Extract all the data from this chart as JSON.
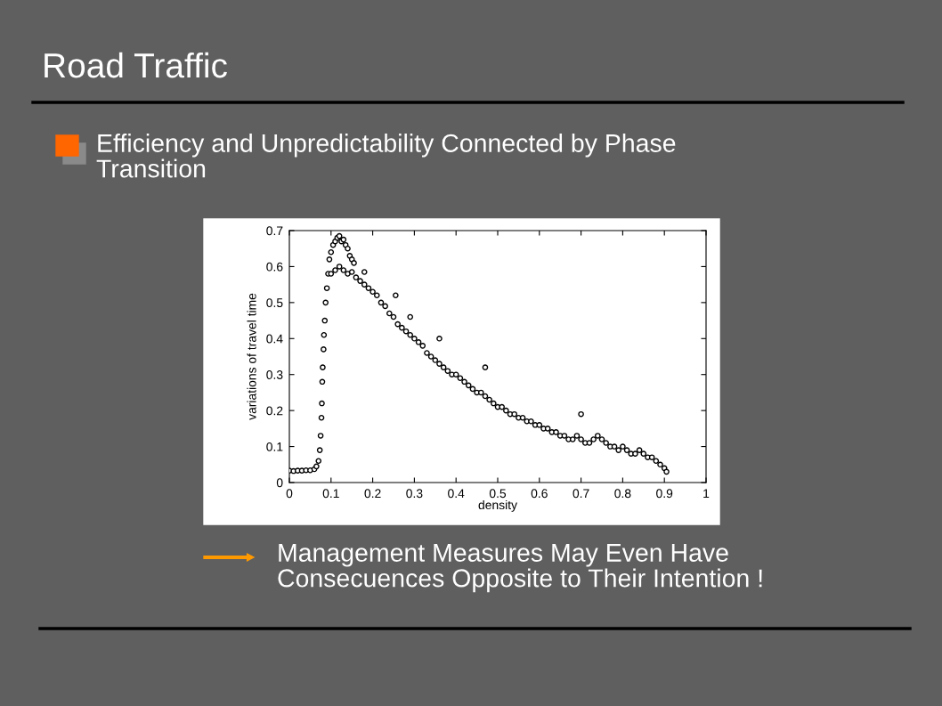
{
  "chart_data": {
    "type": "scatter",
    "title": "Road Traffic",
    "subtitle": "Efficiency and Unpredictability Connected by Phase\nTransition",
    "annotations": [
      "Management Measures May Even Have\nConsecuences Opposite to Their Intention !"
    ],
    "xlabel": "density",
    "ylabel": "variations of travel time",
    "xlim": [
      0,
      1
    ],
    "ylim": [
      0,
      0.7
    ],
    "xticks": [
      0,
      0.1,
      0.2,
      0.3,
      0.4,
      0.5,
      0.6,
      0.7,
      0.8,
      0.9,
      1
    ],
    "yticks": [
      0,
      0.1,
      0.2,
      0.3,
      0.4,
      0.5,
      0.6,
      0.7
    ],
    "grid": false,
    "marker": "circle",
    "series": [
      {
        "color": "#000000",
        "x": [
          0,
          0.01,
          0.02,
          0.03,
          0.04,
          0.05,
          0.06,
          0.065,
          0.07,
          0.073,
          0.075,
          0.077,
          0.078,
          0.079,
          0.08,
          0.082,
          0.083,
          0.085,
          0.087,
          0.09,
          0.093,
          0.096,
          0.1,
          0.105,
          0.11,
          0.115,
          0.12,
          0.125,
          0.13,
          0.135,
          0.14,
          0.145,
          0.15,
          0.155,
          0.1,
          0.11,
          0.12,
          0.13,
          0.14,
          0.15,
          0.16,
          0.17,
          0.18,
          0.18,
          0.19,
          0.2,
          0.21,
          0.22,
          0.23,
          0.24,
          0.25,
          0.255,
          0.26,
          0.27,
          0.28,
          0.29,
          0.29,
          0.3,
          0.31,
          0.32,
          0.33,
          0.34,
          0.35,
          0.36,
          0.36,
          0.37,
          0.38,
          0.39,
          0.4,
          0.41,
          0.42,
          0.43,
          0.44,
          0.45,
          0.46,
          0.47,
          0.47,
          0.48,
          0.49,
          0.5,
          0.51,
          0.52,
          0.53,
          0.54,
          0.55,
          0.56,
          0.57,
          0.58,
          0.59,
          0.6,
          0.61,
          0.62,
          0.63,
          0.64,
          0.65,
          0.66,
          0.67,
          0.68,
          0.69,
          0.7,
          0.7,
          0.71,
          0.72,
          0.73,
          0.74,
          0.75,
          0.76,
          0.77,
          0.78,
          0.79,
          0.8,
          0.81,
          0.82,
          0.83,
          0.84,
          0.85,
          0.86,
          0.87,
          0.88,
          0.89,
          0.9,
          0.905
        ],
        "values": [
          0.033,
          0.032,
          0.033,
          0.033,
          0.034,
          0.034,
          0.037,
          0.045,
          0.06,
          0.09,
          0.13,
          0.18,
          0.22,
          0.28,
          0.32,
          0.37,
          0.41,
          0.45,
          0.5,
          0.54,
          0.58,
          0.62,
          0.64,
          0.66,
          0.67,
          0.68,
          0.685,
          0.67,
          0.675,
          0.66,
          0.65,
          0.63,
          0.62,
          0.61,
          0.58,
          0.59,
          0.6,
          0.59,
          0.58,
          0.585,
          0.57,
          0.56,
          0.585,
          0.55,
          0.54,
          0.53,
          0.52,
          0.5,
          0.49,
          0.47,
          0.46,
          0.52,
          0.44,
          0.43,
          0.42,
          0.41,
          0.46,
          0.4,
          0.39,
          0.38,
          0.36,
          0.35,
          0.34,
          0.4,
          0.33,
          0.32,
          0.31,
          0.3,
          0.3,
          0.29,
          0.28,
          0.27,
          0.26,
          0.25,
          0.25,
          0.24,
          0.32,
          0.23,
          0.22,
          0.21,
          0.21,
          0.2,
          0.19,
          0.19,
          0.18,
          0.18,
          0.17,
          0.17,
          0.16,
          0.16,
          0.15,
          0.15,
          0.14,
          0.14,
          0.13,
          0.13,
          0.12,
          0.12,
          0.13,
          0.12,
          0.19,
          0.11,
          0.11,
          0.12,
          0.13,
          0.12,
          0.11,
          0.1,
          0.1,
          0.09,
          0.1,
          0.09,
          0.08,
          0.08,
          0.09,
          0.08,
          0.07,
          0.07,
          0.06,
          0.05,
          0.04,
          0.03
        ]
      }
    ]
  }
}
